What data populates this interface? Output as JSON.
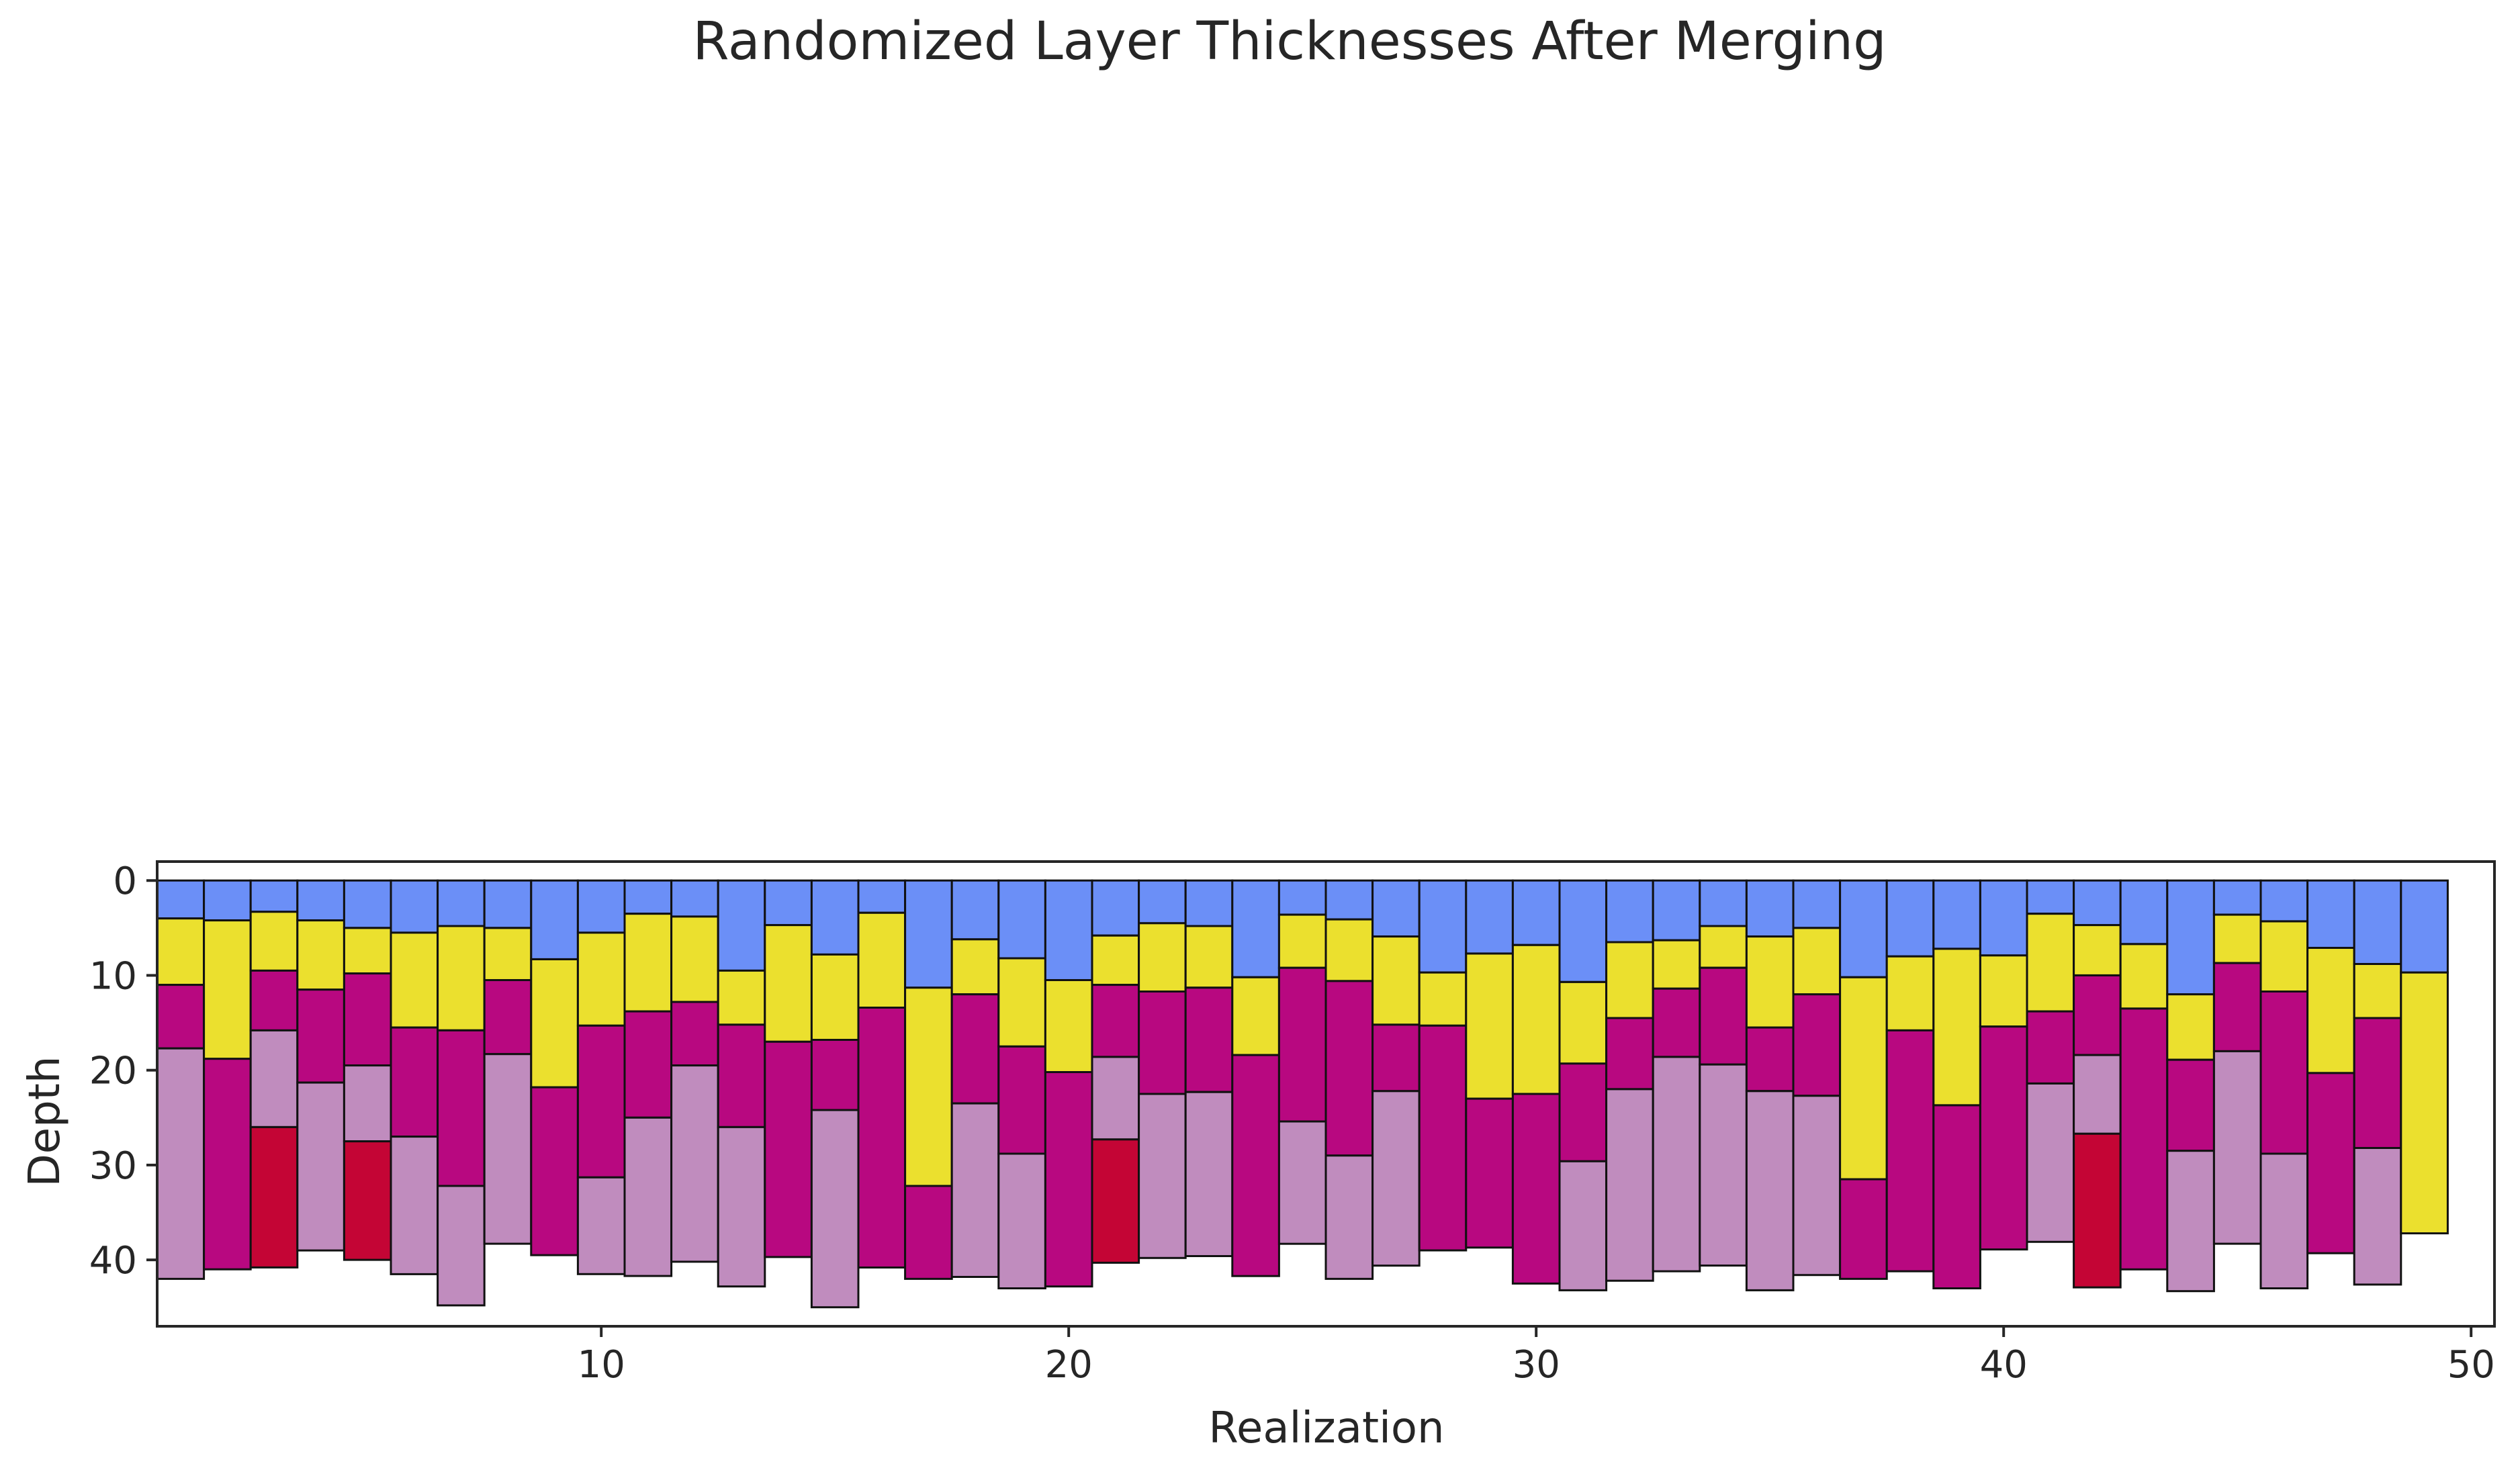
{
  "chart_data": {
    "type": "bar",
    "title": "Randomized Layer Thicknesses After Merging",
    "xlabel": "Realization",
    "ylabel": "Depth",
    "xlim": [
      0.5,
      50.5
    ],
    "ylim": [
      47,
      -2
    ],
    "y_inverted": true,
    "grid": false,
    "legend": "none",
    "xticks": [
      10,
      20,
      30,
      40,
      50
    ],
    "yticks": [
      0,
      10,
      20,
      30,
      40
    ],
    "layer_colors": [
      "#6b8ff7",
      "#ebe02e",
      "#b80880",
      "#c08cbe",
      "#c40535"
    ],
    "x": [
      1,
      2,
      3,
      4,
      5,
      6,
      7,
      8,
      9,
      10,
      11,
      12,
      13,
      14,
      15,
      16,
      17,
      18,
      19,
      20,
      21,
      22,
      23,
      24,
      25,
      26,
      27,
      28,
      29,
      30,
      31,
      32,
      33,
      34,
      35,
      36,
      37,
      38,
      39,
      40,
      41,
      42,
      43,
      44,
      45,
      46,
      47,
      48,
      49
    ],
    "columns": [
      [
        [
          0,
          4,
          0
        ],
        [
          4,
          11,
          1
        ],
        [
          11,
          17.7,
          2
        ],
        [
          17.7,
          42,
          3
        ]
      ],
      [
        [
          0,
          4.2,
          0
        ],
        [
          4.2,
          18.8,
          1
        ],
        [
          18.8,
          41,
          2
        ]
      ],
      [
        [
          0,
          3.3,
          0
        ],
        [
          3.3,
          9.5,
          1
        ],
        [
          9.5,
          15.8,
          2
        ],
        [
          15.8,
          26,
          3
        ],
        [
          26,
          40.8,
          4
        ]
      ],
      [
        [
          0,
          4.2,
          0
        ],
        [
          4.2,
          11.5,
          1
        ],
        [
          11.5,
          21.3,
          2
        ],
        [
          21.3,
          39,
          3
        ]
      ],
      [
        [
          0,
          5,
          0
        ],
        [
          5,
          9.8,
          1
        ],
        [
          9.8,
          19.5,
          2
        ],
        [
          19.5,
          27.5,
          3
        ],
        [
          27.5,
          40,
          4
        ]
      ],
      [
        [
          0,
          5.5,
          0
        ],
        [
          5.5,
          15.5,
          1
        ],
        [
          15.5,
          27,
          2
        ],
        [
          27,
          41.5,
          3
        ]
      ],
      [
        [
          0,
          4.8,
          0
        ],
        [
          4.8,
          15.8,
          1
        ],
        [
          15.8,
          32.2,
          2
        ],
        [
          32.2,
          44.8,
          3
        ]
      ],
      [
        [
          0,
          5,
          0
        ],
        [
          5,
          10.5,
          1
        ],
        [
          10.5,
          18.3,
          2
        ],
        [
          18.3,
          38.3,
          3
        ]
      ],
      [
        [
          0,
          8.3,
          0
        ],
        [
          8.3,
          21.8,
          1
        ],
        [
          21.8,
          39.5,
          2
        ]
      ],
      [
        [
          0,
          5.5,
          0
        ],
        [
          5.5,
          15.3,
          1
        ],
        [
          15.3,
          31.3,
          2
        ],
        [
          31.3,
          41.5,
          3
        ]
      ],
      [
        [
          0,
          3.5,
          0
        ],
        [
          3.5,
          13.8,
          1
        ],
        [
          13.8,
          25,
          2
        ],
        [
          25,
          41.7,
          3
        ]
      ],
      [
        [
          0,
          3.8,
          0
        ],
        [
          3.8,
          12.8,
          1
        ],
        [
          12.8,
          19.5,
          2
        ],
        [
          19.5,
          40.2,
          3
        ]
      ],
      [
        [
          0,
          9.5,
          0
        ],
        [
          9.5,
          15.2,
          1
        ],
        [
          15.2,
          26,
          2
        ],
        [
          26,
          42.8,
          3
        ]
      ],
      [
        [
          0,
          4.7,
          0
        ],
        [
          4.7,
          17,
          1
        ],
        [
          17,
          39.7,
          2
        ]
      ],
      [
        [
          0,
          7.8,
          0
        ],
        [
          7.8,
          16.8,
          1
        ],
        [
          16.8,
          24.2,
          2
        ],
        [
          24.2,
          45,
          3
        ]
      ],
      [
        [
          0,
          3.4,
          0
        ],
        [
          3.4,
          13.4,
          1
        ],
        [
          13.4,
          40.8,
          2
        ]
      ],
      [
        [
          0,
          11.3,
          0
        ],
        [
          11.3,
          32.2,
          1
        ],
        [
          32.2,
          42,
          2
        ]
      ],
      [
        [
          0,
          6.2,
          0
        ],
        [
          6.2,
          12,
          1
        ],
        [
          12,
          23.5,
          2
        ],
        [
          23.5,
          41.8,
          3
        ]
      ],
      [
        [
          0,
          8.2,
          0
        ],
        [
          8.2,
          17.5,
          1
        ],
        [
          17.5,
          28.8,
          2
        ],
        [
          28.8,
          43,
          3
        ]
      ],
      [
        [
          0,
          10.5,
          0
        ],
        [
          10.5,
          20.2,
          1
        ],
        [
          20.2,
          42.8,
          2
        ]
      ],
      [
        [
          0,
          5.8,
          0
        ],
        [
          5.8,
          11,
          1
        ],
        [
          11,
          18.6,
          2
        ],
        [
          18.6,
          27.3,
          3
        ],
        [
          27.3,
          40.3,
          4
        ]
      ],
      [
        [
          0,
          4.5,
          0
        ],
        [
          4.5,
          11.7,
          1
        ],
        [
          11.7,
          22.5,
          2
        ],
        [
          22.5,
          39.8,
          3
        ]
      ],
      [
        [
          0,
          4.8,
          0
        ],
        [
          4.8,
          11.3,
          1
        ],
        [
          11.3,
          22.3,
          2
        ],
        [
          22.3,
          39.6,
          3
        ]
      ],
      [
        [
          0,
          10.2,
          0
        ],
        [
          10.2,
          18.4,
          1
        ],
        [
          18.4,
          41.7,
          2
        ]
      ],
      [
        [
          0,
          3.6,
          0
        ],
        [
          3.6,
          9.2,
          1
        ],
        [
          9.2,
          25.4,
          2
        ],
        [
          25.4,
          38.3,
          3
        ]
      ],
      [
        [
          0,
          4.1,
          0
        ],
        [
          4.1,
          10.6,
          1
        ],
        [
          10.6,
          29,
          2
        ],
        [
          29,
          42,
          3
        ]
      ],
      [
        [
          0,
          5.9,
          0
        ],
        [
          5.9,
          15.2,
          1
        ],
        [
          15.2,
          22.2,
          2
        ],
        [
          22.2,
          40.6,
          3
        ]
      ],
      [
        [
          0,
          9.7,
          0
        ],
        [
          9.7,
          15.3,
          1
        ],
        [
          15.3,
          39,
          2
        ]
      ],
      [
        [
          0,
          7.7,
          0
        ],
        [
          7.7,
          23,
          1
        ],
        [
          23,
          38.7,
          2
        ]
      ],
      [
        [
          0,
          6.8,
          0
        ],
        [
          6.8,
          22.5,
          1
        ],
        [
          22.5,
          42.5,
          2
        ]
      ],
      [
        [
          0,
          10.7,
          0
        ],
        [
          10.7,
          19.3,
          1
        ],
        [
          19.3,
          29.6,
          2
        ],
        [
          29.6,
          43.2,
          3
        ]
      ],
      [
        [
          0,
          6.5,
          0
        ],
        [
          6.5,
          14.5,
          1
        ],
        [
          14.5,
          22,
          2
        ],
        [
          22,
          42.2,
          3
        ]
      ],
      [
        [
          0,
          6.3,
          0
        ],
        [
          6.3,
          11.4,
          1
        ],
        [
          11.4,
          18.6,
          2
        ],
        [
          18.6,
          41.2,
          3
        ]
      ],
      [
        [
          0,
          4.8,
          0
        ],
        [
          4.8,
          9.2,
          1
        ],
        [
          9.2,
          19.4,
          2
        ],
        [
          19.4,
          40.6,
          3
        ]
      ],
      [
        [
          0,
          5.9,
          0
        ],
        [
          5.9,
          15.5,
          1
        ],
        [
          15.5,
          22.2,
          2
        ],
        [
          22.2,
          43.2,
          3
        ]
      ],
      [
        [
          0,
          5,
          0
        ],
        [
          5,
          12,
          1
        ],
        [
          12,
          22.7,
          2
        ],
        [
          22.7,
          41.6,
          3
        ]
      ],
      [
        [
          0,
          10.2,
          0
        ],
        [
          10.2,
          31.5,
          1
        ],
        [
          31.5,
          42,
          2
        ]
      ],
      [
        [
          0,
          8,
          0
        ],
        [
          8,
          15.8,
          1
        ],
        [
          15.8,
          41.2,
          2
        ]
      ],
      [
        [
          0,
          7.2,
          0
        ],
        [
          7.2,
          23.7,
          1
        ],
        [
          23.7,
          43,
          2
        ]
      ],
      [
        [
          0,
          7.9,
          0
        ],
        [
          7.9,
          15.4,
          1
        ],
        [
          15.4,
          38.9,
          2
        ]
      ],
      [
        [
          0,
          3.5,
          0
        ],
        [
          3.5,
          13.8,
          1
        ],
        [
          13.8,
          21.4,
          2
        ],
        [
          21.4,
          38.1,
          3
        ]
      ],
      [
        [
          0,
          4.7,
          0
        ],
        [
          4.7,
          10,
          1
        ],
        [
          10,
          18.4,
          2
        ],
        [
          18.4,
          26.7,
          3
        ],
        [
          26.7,
          42.9,
          4
        ]
      ],
      [
        [
          0,
          6.7,
          0
        ],
        [
          6.7,
          13.5,
          1
        ],
        [
          13.5,
          41,
          2
        ]
      ],
      [
        [
          0,
          12,
          0
        ],
        [
          12,
          18.9,
          1
        ],
        [
          18.9,
          28.5,
          2
        ],
        [
          28.5,
          43.3,
          3
        ]
      ],
      [
        [
          0,
          3.6,
          0
        ],
        [
          3.6,
          8.7,
          1
        ],
        [
          8.7,
          18,
          2
        ],
        [
          18,
          38.3,
          3
        ]
      ],
      [
        [
          0,
          4.3,
          0
        ],
        [
          4.3,
          11.7,
          1
        ],
        [
          11.7,
          28.8,
          2
        ],
        [
          28.8,
          43,
          3
        ]
      ],
      [
        [
          0,
          7.1,
          0
        ],
        [
          7.1,
          20.3,
          1
        ],
        [
          20.3,
          39.3,
          2
        ]
      ],
      [
        [
          0,
          8.8,
          0
        ],
        [
          8.8,
          14.5,
          1
        ],
        [
          14.5,
          28.2,
          2
        ],
        [
          28.2,
          42.6,
          3
        ]
      ],
      [
        [
          0,
          9.7,
          0
        ],
        [
          9.7,
          37.2,
          1
        ]
      ]
    ]
  }
}
